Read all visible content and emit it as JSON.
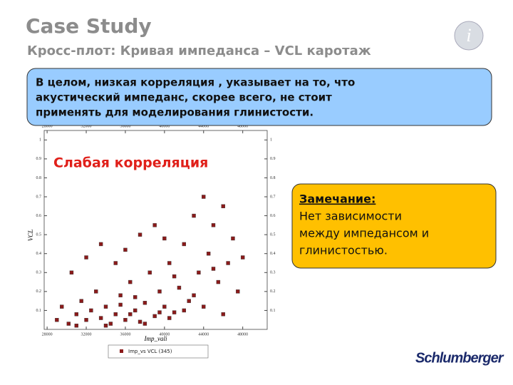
{
  "header": {
    "title": "Case Study",
    "subtitle": "Кросс-плот: Кривая импеданса – VCL каротаж"
  },
  "callout": {
    "lines": [
      "В целом, низкая корреляция , указывает на то, что",
      "акустический импеданс, скорее всего, не стоит",
      "применять для моделирования глинистости."
    ]
  },
  "note": {
    "title": "Замечание:",
    "lines": [
      "Нет зависимости",
      "между импедансом и",
      "глинистостью."
    ]
  },
  "logo": "Schlumberger",
  "chart_data": {
    "type": "scatter",
    "annotation": "Слабая корреляция",
    "x_label": "Imp_vali",
    "y_label": "VCL",
    "series": [
      {
        "name": "Imp_vs VCL (345)",
        "color": "#8b1a1a",
        "x": [
          29000,
          29500,
          30200,
          31000,
          31500,
          32000,
          32500,
          33000,
          33500,
          34000,
          34500,
          35000,
          35500,
          36000,
          36500,
          37000,
          37500,
          38000,
          38500,
          39000,
          39500,
          40000,
          40500,
          41000,
          41500,
          42000,
          42500,
          43000,
          43500,
          44000,
          44500,
          45000,
          45500,
          46000,
          46500,
          47000,
          47500,
          48000,
          30500,
          32000,
          33500,
          35000,
          36000,
          37500,
          39000,
          40000,
          34000,
          36500,
          38000,
          40500,
          42000,
          44000,
          46000,
          31000,
          35500,
          37000,
          39500,
          41000,
          43000,
          45000
        ],
        "values": [
          0.05,
          0.12,
          0.03,
          0.08,
          0.15,
          0.05,
          0.1,
          0.2,
          0.06,
          0.12,
          0.03,
          0.08,
          0.18,
          0.05,
          0.25,
          0.1,
          0.04,
          0.14,
          0.3,
          0.07,
          0.2,
          0.12,
          0.35,
          0.09,
          0.22,
          0.45,
          0.15,
          0.6,
          0.3,
          0.7,
          0.4,
          0.55,
          0.25,
          0.65,
          0.35,
          0.48,
          0.2,
          0.38,
          0.3,
          0.38,
          0.45,
          0.35,
          0.42,
          0.5,
          0.55,
          0.48,
          0.02,
          0.08,
          0.03,
          0.06,
          0.1,
          0.12,
          0.08,
          0.02,
          0.13,
          0.17,
          0.09,
          0.28,
          0.18,
          0.32
        ]
      }
    ],
    "xlim": [
      27700,
      50500
    ],
    "xticks": [
      28000,
      32000,
      36000,
      40000,
      44000,
      48000
    ],
    "ylim": [
      0,
      1.05
    ],
    "yticks": [
      0.1,
      0.2,
      0.3,
      0.4,
      0.5,
      0.6,
      0.7,
      0.8,
      0.9,
      1
    ]
  }
}
